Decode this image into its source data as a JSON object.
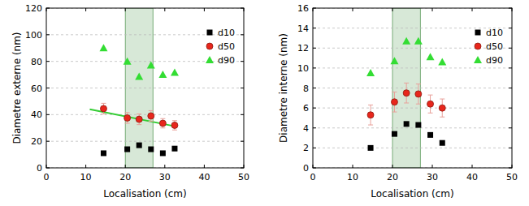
{
  "chart_data": [
    {
      "type": "scatter",
      "xlabel": "Localisation (cm)",
      "ylabel": "Diametre externe (nm)",
      "x": [
        14.5,
        20.5,
        23.5,
        26.5,
        29.5,
        32.5
      ],
      "series": [
        {
          "name": "d10",
          "color": "#000000",
          "marker": "square",
          "values": [
            11,
            14,
            17,
            14,
            11,
            14.5
          ]
        },
        {
          "name": "d50",
          "color": "#e8261c",
          "marker": "circle",
          "values": [
            44.5,
            37.5,
            36.5,
            39,
            33.5,
            32
          ],
          "errors": [
            4,
            4,
            4,
            4,
            3.5,
            3.5
          ]
        },
        {
          "name": "d90",
          "color": "#33dd33",
          "marker": "triangle",
          "values": [
            90,
            80,
            68.5,
            77,
            70,
            71.5
          ]
        }
      ],
      "highlight_x": [
        20,
        27
      ],
      "trend": {
        "color": "#33cc33",
        "x": [
          11,
          33
        ],
        "y": [
          44,
          31
        ]
      },
      "xlim": [
        0,
        50
      ],
      "ylim": [
        0,
        120
      ],
      "xticks": [
        0,
        10,
        20,
        30,
        40,
        50
      ],
      "yticks": [
        0,
        20,
        40,
        60,
        80,
        100,
        120
      ],
      "grid": true,
      "legend": "top-right"
    },
    {
      "type": "scatter",
      "xlabel": "Localisation (cm)",
      "ylabel": "Diametre interne (nm)",
      "x": [
        14.5,
        20.5,
        23.5,
        26.5,
        29.5,
        32.5
      ],
      "series": [
        {
          "name": "d10",
          "color": "#000000",
          "marker": "square",
          "values": [
            2,
            3.4,
            4.4,
            4.3,
            3.3,
            2.5
          ]
        },
        {
          "name": "d50",
          "color": "#e8261c",
          "marker": "circle",
          "values": [
            5.3,
            6.6,
            7.5,
            7.4,
            6.4,
            6.0
          ],
          "errors": [
            1,
            1,
            1,
            1,
            0.9,
            0.9
          ]
        },
        {
          "name": "d90",
          "color": "#33dd33",
          "marker": "triangle",
          "values": [
            9.5,
            10.7,
            12.7,
            12.7,
            11.1,
            10.6
          ]
        }
      ],
      "highlight_x": [
        20,
        27
      ],
      "xlim": [
        0,
        50
      ],
      "ylim": [
        0,
        16
      ],
      "xticks": [
        0,
        10,
        20,
        30,
        40,
        50
      ],
      "yticks": [
        0,
        2,
        4,
        6,
        8,
        10,
        12,
        14,
        16
      ],
      "grid": true,
      "legend": "top-right"
    }
  ]
}
